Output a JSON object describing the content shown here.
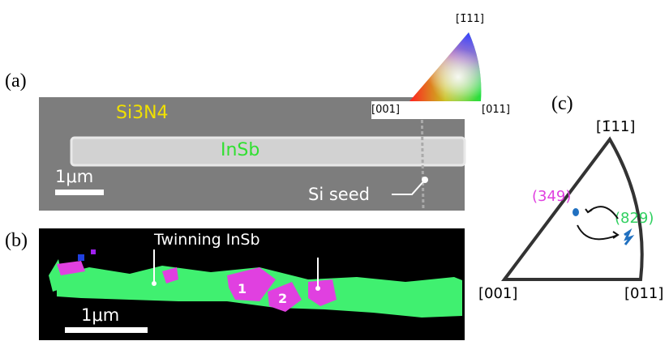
{
  "panel_a": {
    "label": "(a)",
    "material": "Si3N4",
    "wire": "InSb",
    "scale": "1μm",
    "seed": "Si seed"
  },
  "legend": {
    "apex": "[1̄11]",
    "left": "[001]",
    "right": "[011]"
  },
  "panel_b": {
    "label": "(b)",
    "title": "Twinning InSb",
    "twins": [
      "1",
      "2"
    ],
    "scale": "1μm"
  },
  "panel_c": {
    "label": "(c)",
    "apex": "[1̄11]",
    "left": "[001]",
    "right": "[011]",
    "points": [
      "(349)",
      "(829)"
    ]
  }
}
